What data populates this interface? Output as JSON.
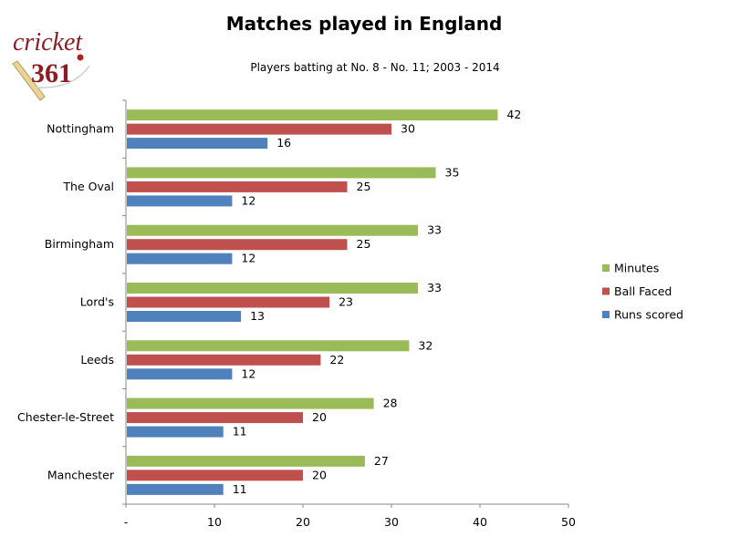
{
  "logo": {
    "text_top": "cricket",
    "text_bottom": "361"
  },
  "chart_data": {
    "type": "bar",
    "orientation": "horizontal",
    "title": "Matches played in England",
    "subtitle": "Players batting at No. 8 - No. 11; 2003 - 2014",
    "categories": [
      "Nottingham",
      "The Oval",
      "Birmingham",
      "Lord's",
      "Leeds",
      "Chester-le-Street",
      "Manchester"
    ],
    "series": [
      {
        "name": "Minutes",
        "color": "#9bbb59",
        "values": [
          42,
          35,
          33,
          33,
          32,
          28,
          27
        ]
      },
      {
        "name": "Ball Faced",
        "color": "#c0504d",
        "values": [
          30,
          25,
          25,
          23,
          22,
          20,
          20
        ]
      },
      {
        "name": "Runs scored",
        "color": "#4f81bd",
        "values": [
          16,
          12,
          12,
          13,
          12,
          11,
          11
        ]
      }
    ],
    "xlim": [
      0,
      50
    ],
    "xticks": [
      "-",
      "10",
      "20",
      "30",
      "40",
      "50"
    ],
    "grid": false,
    "legend": "right",
    "data_labels": true
  }
}
